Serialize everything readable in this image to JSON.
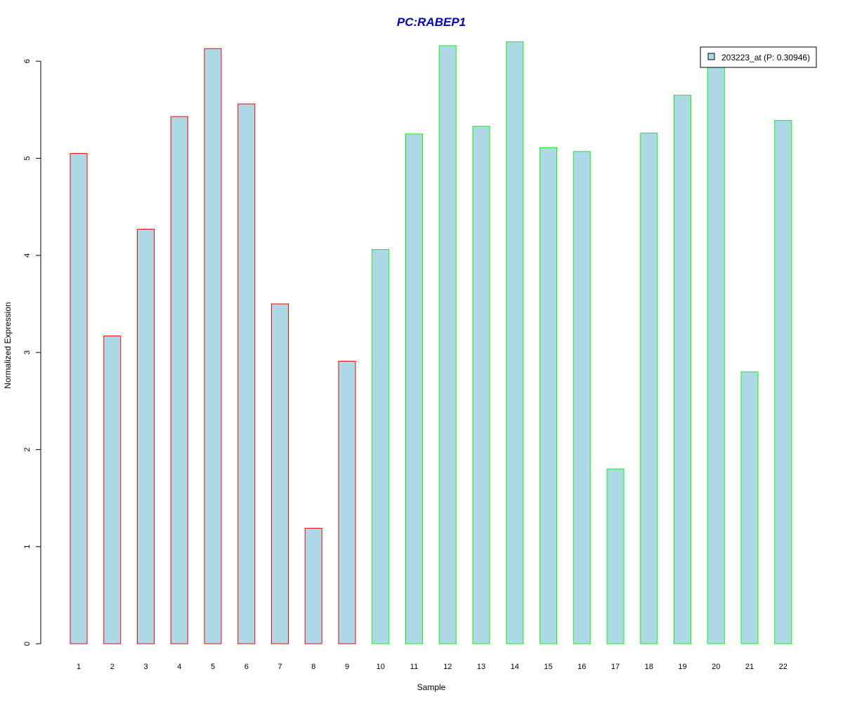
{
  "chart_data": {
    "type": "bar",
    "title": "PC:RABEP1",
    "xlabel": "Sample",
    "ylabel": "Normalized Expression",
    "ylim": [
      0,
      6.2
    ],
    "yticks": [
      0,
      1,
      2,
      3,
      4,
      5,
      6
    ],
    "categories": [
      "1",
      "2",
      "3",
      "4",
      "5",
      "6",
      "7",
      "8",
      "9",
      "10",
      "11",
      "12",
      "13",
      "14",
      "15",
      "16",
      "17",
      "18",
      "19",
      "20",
      "21",
      "22"
    ],
    "values": [
      5.05,
      3.17,
      4.27,
      5.43,
      6.13,
      5.56,
      3.5,
      1.19,
      2.91,
      4.06,
      5.25,
      6.16,
      5.33,
      6.2,
      5.11,
      5.07,
      1.8,
      5.26,
      5.65,
      5.94,
      2.8,
      5.39
    ],
    "groups": [
      "red",
      "red",
      "red",
      "red",
      "red",
      "red",
      "red",
      "red",
      "red",
      "green",
      "green",
      "green",
      "green",
      "green",
      "green",
      "green",
      "green",
      "green",
      "green",
      "green",
      "green",
      "green"
    ],
    "legend": {
      "label": "203223_at (P: 0.30946)",
      "position": "top-right"
    },
    "grid": false,
    "colors": {
      "bar_fill": "#add8e6",
      "border_red": "#ff0000",
      "border_green": "#00ff00",
      "title": "#0000cd"
    }
  }
}
